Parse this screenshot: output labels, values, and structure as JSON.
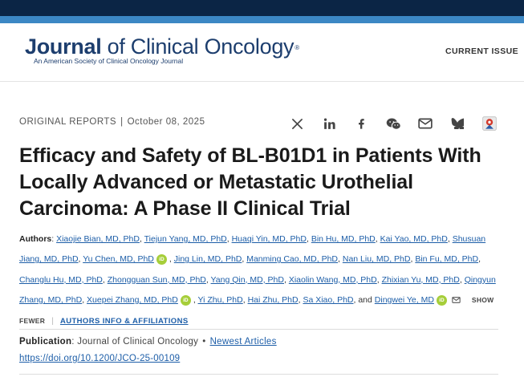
{
  "header": {
    "logo_text_bold": "Journal",
    "logo_text_rest": " of Clinical Oncology",
    "logo_reg": "®",
    "logo_subtitle": "An American Society of Clinical Oncology Journal",
    "current_issue_label": "CURRENT ISSUE"
  },
  "article": {
    "type": "ORIGINAL REPORTS",
    "separator": "|",
    "date": "October 08, 2025",
    "title": "Efficacy and Safety of BL-B01D1 in Patients With Locally Advanced or Metastatic Urothelial Carcinoma: A Phase II Clinical Trial"
  },
  "share": {
    "icons": [
      "x-twitter-icon",
      "linkedin-icon",
      "facebook-icon",
      "wechat-icon",
      "email-icon",
      "bluesky-icon",
      "citation-manager-icon"
    ]
  },
  "authors": {
    "label": "Authors",
    "list": [
      "Xiaojie Bian, MD, PhD",
      "Tiejun Yang, MD, PhD",
      "Huaqi Yin, MD, PhD",
      "Bin Hu, MD, PhD",
      "Kai Yao, MD, PhD",
      "Shusuan Jiang, MD, PhD",
      "Yu Chen, MD, PhD",
      "Jing Lin, MD, PhD",
      "Manming Cao, MD, PhD",
      "Nan Liu, MD, PhD",
      "Bin Fu, MD, PhD",
      "Changlu Hu, MD, PhD",
      "Zhongguan Sun, MD, PhD",
      "Yang Qin, MD, PhD",
      "Xiaolin Wang, MD, PhD",
      "Zhixian Yu, MD, PhD",
      "Qingyun Zhang, MD, PhD",
      "Xuepei Zhang, MD, PhD",
      "Yi Zhu, PhD",
      "Hai Zhu, PhD",
      "Sa Xiao, PhD",
      "Dingwei Ye, MD"
    ],
    "and_text": "and",
    "orcid_text": "iD",
    "show_fewer": "SHOW FEWER",
    "affiliations_link": "AUTHORS INFO & AFFILIATIONS"
  },
  "publication": {
    "label": "Publication",
    "journal": "Journal of Clinical Oncology",
    "bullet": "•",
    "newest_link": "Newest Articles",
    "doi": "https://doi.org/10.1200/JCO-25-00109"
  }
}
